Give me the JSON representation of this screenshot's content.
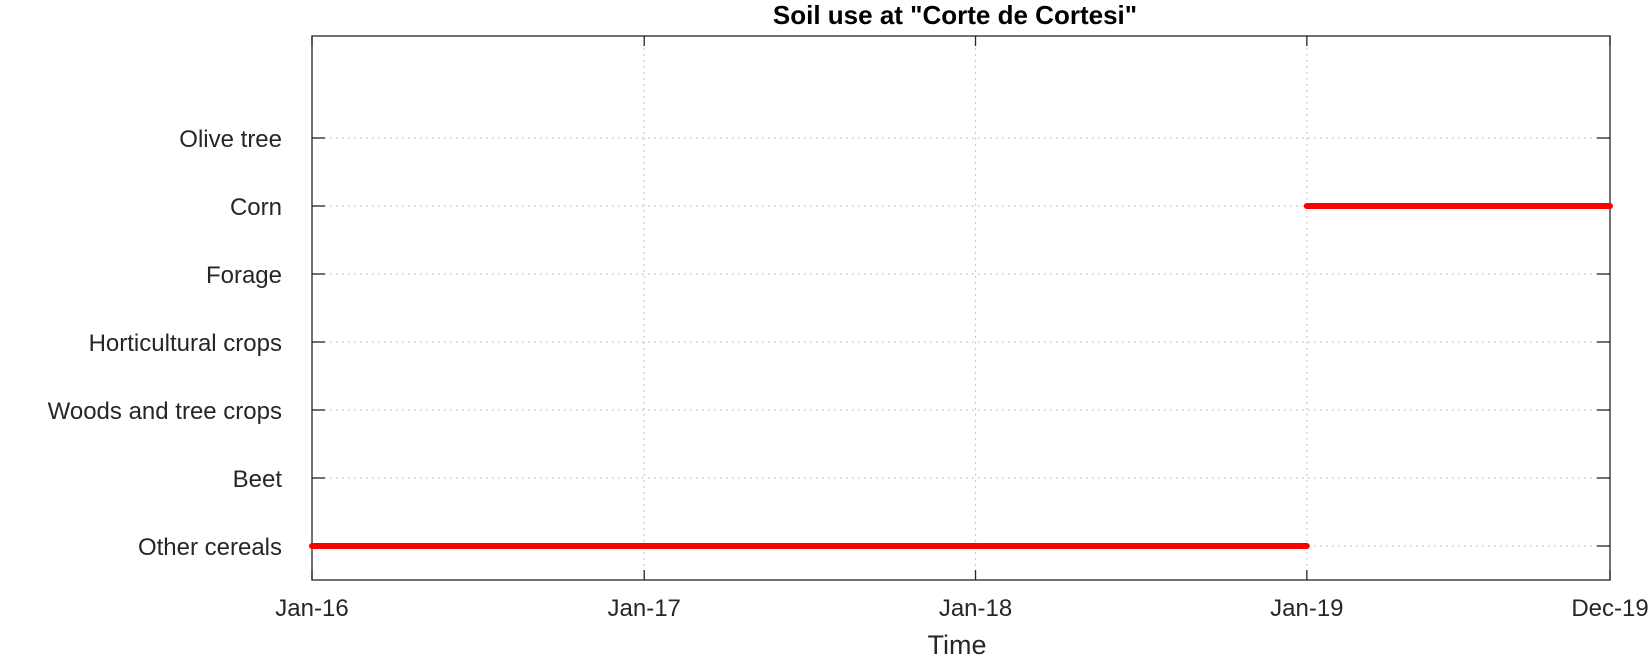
{
  "chart_data": {
    "type": "line",
    "title": "Soil use at \"Corte de Cortesi\"",
    "xlabel": "Time",
    "ylabel": "",
    "x_ticks": [
      "Jan-16",
      "Jan-17",
      "Jan-18",
      "Jan-19",
      "Dec-19"
    ],
    "x_tick_dates": [
      "2016-01-01",
      "2017-01-01",
      "2018-01-01",
      "2019-01-01",
      "2019-12-01"
    ],
    "xlim": [
      "2016-01-01",
      "2019-12-01"
    ],
    "categories": [
      "Other cereals",
      "Beet",
      "Woods and tree crops",
      "Horticultural crops",
      "Forage",
      "Corn",
      "Olive tree"
    ],
    "ylim": [
      0.5,
      8.5
    ],
    "series": [
      {
        "color": "#ff0000",
        "segments": [
          {
            "category": "Other cereals",
            "start": "2016-01-01",
            "end": "2019-01-01"
          },
          {
            "category": "Corn",
            "start": "2019-01-01",
            "end": "2019-12-01"
          }
        ]
      }
    ],
    "grid": true,
    "legend": "none"
  }
}
